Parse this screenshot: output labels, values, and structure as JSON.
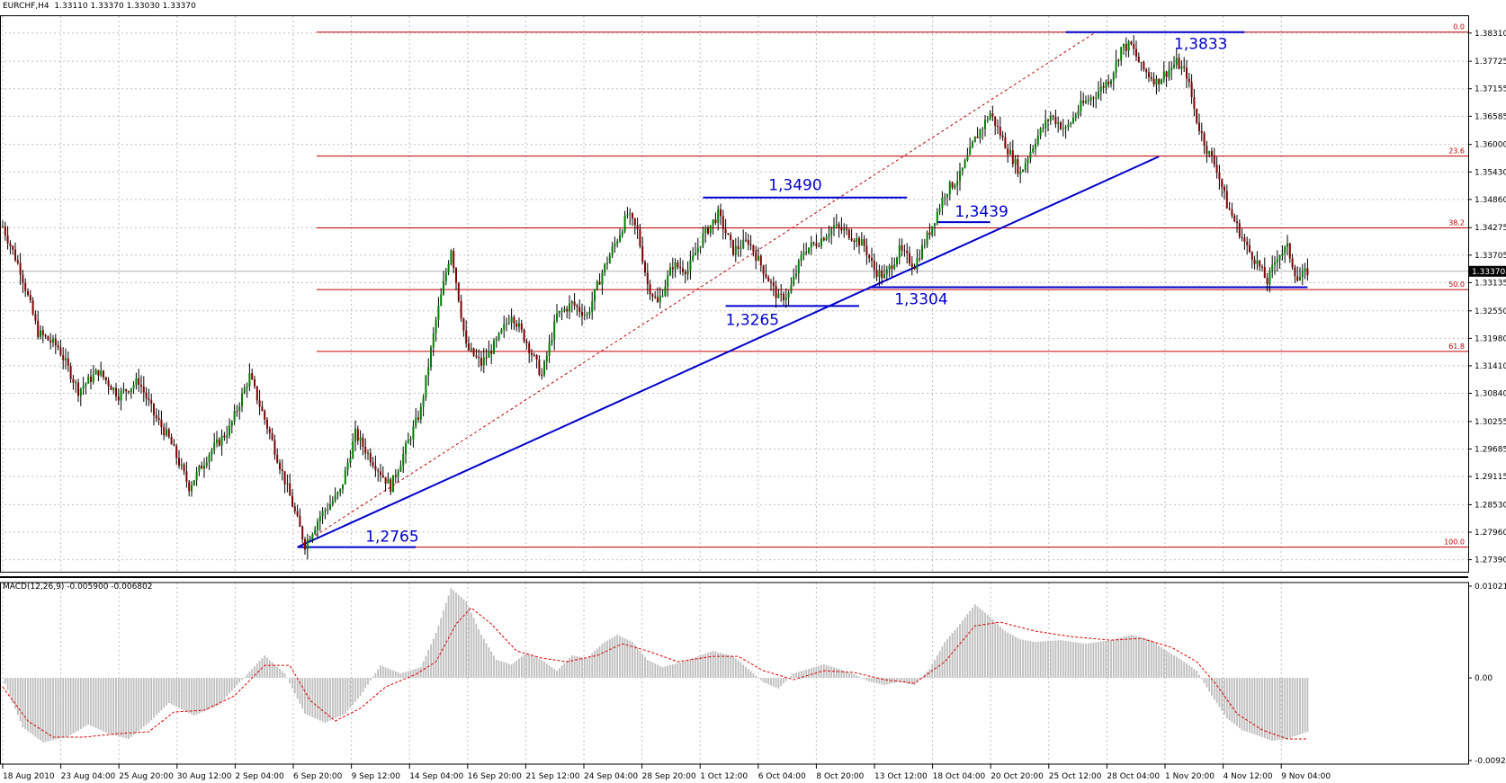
{
  "header": {
    "symbol": "EURCHF,H4",
    "ohlc": "1.33110 1.33370 1.33030 1.33370"
  },
  "macd_header": {
    "label": "MACD(12,26,9)",
    "values": "-0.005900 -0.006802"
  },
  "colors": {
    "up_candle": "#008000",
    "down_candle": "#800000",
    "fib": "#c00000",
    "annotation": "#0000cc",
    "grid": "#c0c0c0",
    "macd_hist": "#bdbdbd",
    "macd_signal": "#dd0000"
  },
  "chart_data": [
    {
      "type": "candlestick",
      "title": "EURCHF,H4",
      "y_axis_ticks": [
        "1.38310",
        "1.37725",
        "1.37155",
        "1.36585",
        "1.36000",
        "1.35430",
        "1.34860",
        "1.34275",
        "1.33705",
        "1.33135",
        "1.32550",
        "1.31980",
        "1.31410",
        "1.30840",
        "1.30255",
        "1.29685",
        "1.29115",
        "1.28530",
        "1.27960",
        "1.27390"
      ],
      "ylim": [
        1.2714,
        1.3866
      ],
      "x_axis_ticks": [
        "18 Aug 2010",
        "23 Aug 04:00",
        "25 Aug 20:00",
        "30 Aug 12:00",
        "2 Sep 04:00",
        "6 Sep 20:00",
        "9 Sep 12:00",
        "14 Sep 04:00",
        "16 Sep 20:00",
        "21 Sep 12:00",
        "24 Sep 04:00",
        "28 Sep 20:00",
        "1 Oct 12:00",
        "6 Oct 04:00",
        "8 Oct 20:00",
        "13 Oct 12:00",
        "18 Oct 04:00",
        "20 Oct 20:00",
        "25 Oct 12:00",
        "28 Oct 04:00",
        "1 Nov 20:00",
        "4 Nov 12:00",
        "9 Nov 04:00"
      ],
      "current_price": "1.33370",
      "price_path_keypoints": [
        [
          0,
          1.343
        ],
        [
          7,
          1.334
        ],
        [
          14,
          1.321
        ],
        [
          22,
          1.318
        ],
        [
          30,
          1.309
        ],
        [
          38,
          1.313
        ],
        [
          46,
          1.308
        ],
        [
          54,
          1.311
        ],
        [
          60,
          1.304
        ],
        [
          66,
          1.299
        ],
        [
          74,
          1.289
        ],
        [
          82,
          1.296
        ],
        [
          90,
          1.301
        ],
        [
          98,
          1.312
        ],
        [
          106,
          1.3
        ],
        [
          114,
          1.287
        ],
        [
          120,
          1.277
        ],
        [
          126,
          1.283
        ],
        [
          134,
          1.288
        ],
        [
          140,
          1.3
        ],
        [
          146,
          1.295
        ],
        [
          154,
          1.289
        ],
        [
          160,
          1.297
        ],
        [
          166,
          1.305
        ],
        [
          172,
          1.3235
        ],
        [
          178,
          1.3385
        ],
        [
          184,
          1.318
        ],
        [
          190,
          1.3145
        ],
        [
          196,
          1.319
        ],
        [
          202,
          1.325
        ],
        [
          208,
          1.319
        ],
        [
          214,
          1.312
        ],
        [
          220,
          1.3245
        ],
        [
          226,
          1.327
        ],
        [
          232,
          1.3245
        ],
        [
          238,
          1.3335
        ],
        [
          244,
          1.3405
        ],
        [
          248,
          1.3455
        ],
        [
          252,
          1.342
        ],
        [
          256,
          1.331
        ],
        [
          260,
          1.327
        ],
        [
          266,
          1.335
        ],
        [
          272,
          1.334
        ],
        [
          278,
          1.341
        ],
        [
          284,
          1.3455
        ],
        [
          290,
          1.338
        ],
        [
          296,
          1.34
        ],
        [
          302,
          1.334
        ],
        [
          308,
          1.328
        ],
        [
          312,
          1.329
        ],
        [
          318,
          1.338
        ],
        [
          324,
          1.34
        ],
        [
          330,
          1.343
        ],
        [
          336,
          1.3415
        ],
        [
          342,
          1.339
        ],
        [
          346,
          1.334
        ],
        [
          350,
          1.3325
        ],
        [
          356,
          1.338
        ],
        [
          362,
          1.335
        ],
        [
          368,
          1.342
        ],
        [
          374,
          1.35
        ],
        [
          380,
          1.3535
        ],
        [
          386,
          1.361
        ],
        [
          392,
          1.3665
        ],
        [
          398,
          1.36
        ],
        [
          404,
          1.354
        ],
        [
          410,
          1.361
        ],
        [
          416,
          1.366
        ],
        [
          422,
          1.363
        ],
        [
          428,
          1.368
        ],
        [
          434,
          1.3705
        ],
        [
          440,
          1.374
        ],
        [
          444,
          1.38
        ],
        [
          448,
          1.3805
        ],
        [
          452,
          1.376
        ],
        [
          458,
          1.373
        ],
        [
          462,
          1.375
        ],
        [
          466,
          1.377
        ],
        [
          470,
          1.3745
        ],
        [
          474,
          1.365
        ],
        [
          478,
          1.359
        ],
        [
          482,
          1.355
        ],
        [
          486,
          1.3475
        ],
        [
          490,
          1.343
        ],
        [
          494,
          1.3385
        ],
        [
          498,
          1.3355
        ],
        [
          502,
          1.3315
        ],
        [
          506,
          1.337
        ],
        [
          510,
          1.3385
        ],
        [
          514,
          1.332
        ],
        [
          518,
          1.3337
        ]
      ],
      "fibonacci_levels": [
        {
          "label": "0.0",
          "price": 1.3833
        },
        {
          "label": "23.6",
          "price": 1.3576
        },
        {
          "label": "38.2",
          "price": 1.3427
        },
        {
          "label": "50.0",
          "price": 1.3299
        },
        {
          "label": "61.8",
          "price": 1.3171
        },
        {
          "label": "100.0",
          "price": 1.2765
        }
      ],
      "annotations": [
        {
          "text": "1,3833",
          "price": 1.3833
        },
        {
          "text": "1,3490",
          "price": 1.349
        },
        {
          "text": "1,3439",
          "price": 1.3439
        },
        {
          "text": "1,3304",
          "price": 1.3304
        },
        {
          "text": "1,3265",
          "price": 1.3265
        },
        {
          "text": "1,2765",
          "price": 1.2765
        }
      ],
      "trendlines": [
        {
          "style": "solid",
          "from_price": 1.2765,
          "to_price": 1.3575
        },
        {
          "style": "dashed",
          "from_price": 1.2765,
          "to_price": 1.3833
        }
      ]
    },
    {
      "type": "histogram",
      "title": "MACD(12,26,9)",
      "y_axis_ticks": [
        "0.010215",
        "0.00",
        "-0.00920"
      ],
      "ylim": [
        -0.0092,
        0.010215
      ],
      "macd_keypoints": [
        [
          0,
          0
        ],
        [
          8,
          -0.0055
        ],
        [
          16,
          -0.0072
        ],
        [
          26,
          -0.0065
        ],
        [
          34,
          -0.0052
        ],
        [
          42,
          -0.0062
        ],
        [
          50,
          -0.0068
        ],
        [
          58,
          -0.005
        ],
        [
          66,
          -0.0028
        ],
        [
          76,
          -0.0042
        ],
        [
          86,
          -0.003
        ],
        [
          94,
          -0.0005
        ],
        [
          104,
          0.0025
        ],
        [
          112,
          0.0005
        ],
        [
          120,
          -0.004
        ],
        [
          128,
          -0.005
        ],
        [
          136,
          -0.004
        ],
        [
          142,
          -0.002
        ],
        [
          150,
          0.0014
        ],
        [
          158,
          0.0005
        ],
        [
          166,
          0.0012
        ],
        [
          172,
          0.005
        ],
        [
          178,
          0.01
        ],
        [
          184,
          0.0085
        ],
        [
          190,
          0.0048
        ],
        [
          196,
          0.002
        ],
        [
          202,
          0.0015
        ],
        [
          208,
          0.0028
        ],
        [
          214,
          0.002
        ],
        [
          220,
          0.0008
        ],
        [
          226,
          0.0025
        ],
        [
          232,
          0.0022
        ],
        [
          238,
          0.0038
        ],
        [
          244,
          0.0048
        ],
        [
          250,
          0.004
        ],
        [
          256,
          0.002
        ],
        [
          262,
          0.0012
        ],
        [
          270,
          0.0018
        ],
        [
          276,
          0.0024
        ],
        [
          282,
          0.003
        ],
        [
          290,
          0.0024
        ],
        [
          296,
          0.001
        ],
        [
          302,
          -0.0005
        ],
        [
          308,
          -0.0012
        ],
        [
          314,
          0.0005
        ],
        [
          320,
          0.001
        ],
        [
          326,
          0.0015
        ],
        [
          332,
          0.001
        ],
        [
          338,
          0.0004
        ],
        [
          344,
          -0.0004
        ],
        [
          350,
          -0.0008
        ],
        [
          356,
          -0.0004
        ],
        [
          362,
          -0.0008
        ],
        [
          368,
          0.001
        ],
        [
          374,
          0.004
        ],
        [
          380,
          0.006
        ],
        [
          386,
          0.0082
        ],
        [
          392,
          0.0068
        ],
        [
          398,
          0.0052
        ],
        [
          404,
          0.0043
        ],
        [
          410,
          0.004
        ],
        [
          420,
          0.0042
        ],
        [
          430,
          0.0038
        ],
        [
          440,
          0.0042
        ],
        [
          448,
          0.0048
        ],
        [
          456,
          0.0042
        ],
        [
          462,
          0.003
        ],
        [
          468,
          0.002
        ],
        [
          474,
          0.0008
        ],
        [
          480,
          -0.002
        ],
        [
          486,
          -0.0045
        ],
        [
          492,
          -0.0058
        ],
        [
          498,
          -0.0064
        ],
        [
          504,
          -0.007
        ],
        [
          510,
          -0.0068
        ],
        [
          518,
          -0.006
        ]
      ],
      "signal_keypoints": [
        [
          0,
          -0.001
        ],
        [
          10,
          -0.0048
        ],
        [
          20,
          -0.0066
        ],
        [
          32,
          -0.0066
        ],
        [
          46,
          -0.0062
        ],
        [
          58,
          -0.006
        ],
        [
          68,
          -0.0038
        ],
        [
          80,
          -0.0036
        ],
        [
          92,
          -0.002
        ],
        [
          104,
          0.0014
        ],
        [
          114,
          0.0014
        ],
        [
          122,
          -0.0025
        ],
        [
          132,
          -0.0048
        ],
        [
          142,
          -0.0034
        ],
        [
          152,
          -0.001
        ],
        [
          164,
          0.0004
        ],
        [
          172,
          0.0018
        ],
        [
          180,
          0.006
        ],
        [
          186,
          0.0078
        ],
        [
          194,
          0.006
        ],
        [
          204,
          0.003
        ],
        [
          214,
          0.0022
        ],
        [
          224,
          0.0018
        ],
        [
          236,
          0.0025
        ],
        [
          246,
          0.0038
        ],
        [
          256,
          0.003
        ],
        [
          268,
          0.0018
        ],
        [
          282,
          0.0024
        ],
        [
          292,
          0.0024
        ],
        [
          302,
          0.0008
        ],
        [
          314,
          -0.0002
        ],
        [
          326,
          0.0008
        ],
        [
          338,
          0.0006
        ],
        [
          350,
          -0.0002
        ],
        [
          362,
          -0.0006
        ],
        [
          374,
          0.0018
        ],
        [
          386,
          0.0058
        ],
        [
          396,
          0.0062
        ],
        [
          410,
          0.0052
        ],
        [
          424,
          0.0046
        ],
        [
          440,
          0.0042
        ],
        [
          452,
          0.0044
        ],
        [
          464,
          0.0034
        ],
        [
          474,
          0.0018
        ],
        [
          482,
          -0.0008
        ],
        [
          490,
          -0.004
        ],
        [
          500,
          -0.0058
        ],
        [
          510,
          -0.0068
        ],
        [
          518,
          -0.0068
        ]
      ]
    }
  ]
}
